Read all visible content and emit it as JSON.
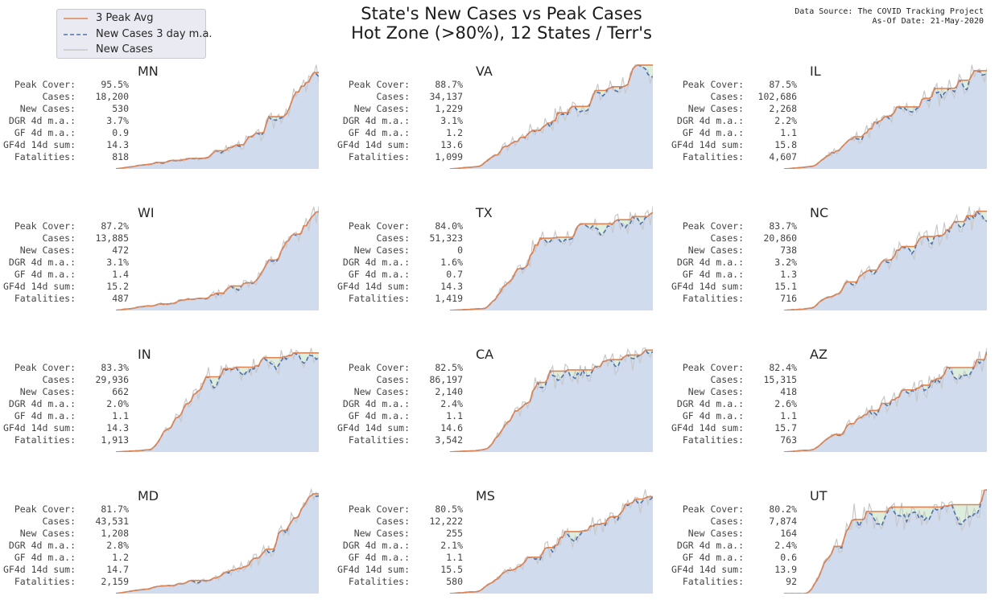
{
  "header": {
    "title_line1": "State's New Cases vs Peak Cases",
    "title_line2": "Hot Zone (>80%), 12 States / Terr's",
    "source_line1": "Data Source: The COVID Tracking Project",
    "source_line2": "As-Of Date: 21-May-2020"
  },
  "legend": {
    "items": [
      {
        "label": "3 Peak Avg",
        "color": "#dd8452",
        "style": "solid"
      },
      {
        "label": "New Cases 3 day m.a.",
        "color": "#4c72b0",
        "style": "dashed"
      },
      {
        "label": "New Cases",
        "color": "#c8c8c8",
        "style": "solid"
      }
    ]
  },
  "stat_labels": [
    "Peak Cover:",
    "Cases:",
    "New Cases:",
    "DGR 4d m.a.:",
    "GF 4d m.a.:",
    "GF4d 14d sum:",
    "Fatalities:"
  ],
  "colors": {
    "peak": "#dd8452",
    "ma": "#4c72b0",
    "raw": "#c8c8c8",
    "area": "#d0dbee",
    "gap": "#deeedd"
  },
  "chart_data": {
    "type": "line",
    "description_series": [
      "3 Peak Avg",
      "New Cases 3 day m.a.",
      "New Cases"
    ],
    "panels": [
      {
        "state": "MN",
        "stats": {
          "peak_cover": "95.5%",
          "cases": "18,200",
          "new_cases": "530",
          "dgr": "3.7%",
          "gf": "0.9",
          "gf14": "14.3",
          "fatalities": "818"
        },
        "shape": "late",
        "seed": 3
      },
      {
        "state": "VA",
        "stats": {
          "peak_cover": "88.7%",
          "cases": "34,137",
          "new_cases": "1,229",
          "dgr": "3.1%",
          "gf": "1.2",
          "gf14": "13.6",
          "fatalities": "1,099"
        },
        "shape": "steady",
        "seed": 7
      },
      {
        "state": "IL",
        "stats": {
          "peak_cover": "87.5%",
          "cases": "102,686",
          "new_cases": "2,268",
          "dgr": "2.2%",
          "gf": "1.1",
          "gf14": "15.8",
          "fatalities": "4,607"
        },
        "shape": "steady",
        "seed": 11
      },
      {
        "state": "WI",
        "stats": {
          "peak_cover": "87.2%",
          "cases": "13,885",
          "new_cases": "472",
          "dgr": "3.1%",
          "gf": "1.4",
          "gf14": "15.2",
          "fatalities": "487"
        },
        "shape": "late",
        "seed": 13
      },
      {
        "state": "TX",
        "stats": {
          "peak_cover": "84.0%",
          "cases": "51,323",
          "new_cases": "0",
          "dgr": "1.6%",
          "gf": "0.7",
          "gf14": "14.3",
          "fatalities": "1,419"
        },
        "shape": "mid",
        "seed": 17
      },
      {
        "state": "NC",
        "stats": {
          "peak_cover": "83.7%",
          "cases": "20,860",
          "new_cases": "738",
          "dgr": "3.2%",
          "gf": "1.3",
          "gf14": "15.1",
          "fatalities": "716"
        },
        "shape": "steady",
        "seed": 19
      },
      {
        "state": "IN",
        "stats": {
          "peak_cover": "83.3%",
          "cases": "29,936",
          "new_cases": "662",
          "dgr": "2.0%",
          "gf": "1.1",
          "gf14": "14.3",
          "fatalities": "1,913"
        },
        "shape": "mid",
        "seed": 23
      },
      {
        "state": "CA",
        "stats": {
          "peak_cover": "82.5%",
          "cases": "86,197",
          "new_cases": "2,140",
          "dgr": "2.4%",
          "gf": "1.1",
          "gf14": "14.6",
          "fatalities": "3,542"
        },
        "shape": "mid",
        "seed": 29
      },
      {
        "state": "AZ",
        "stats": {
          "peak_cover": "82.4%",
          "cases": "15,315",
          "new_cases": "418",
          "dgr": "2.6%",
          "gf": "1.1",
          "gf14": "15.7",
          "fatalities": "763"
        },
        "shape": "steady",
        "seed": 31
      },
      {
        "state": "MD",
        "stats": {
          "peak_cover": "81.7%",
          "cases": "43,531",
          "new_cases": "1,208",
          "dgr": "2.8%",
          "gf": "1.2",
          "gf14": "14.7",
          "fatalities": "2,159"
        },
        "shape": "late",
        "seed": 37
      },
      {
        "state": "MS",
        "stats": {
          "peak_cover": "80.5%",
          "cases": "12,222",
          "new_cases": "255",
          "dgr": "2.1%",
          "gf": "1.1",
          "gf14": "15.5",
          "fatalities": "580"
        },
        "shape": "steady",
        "seed": 41
      },
      {
        "state": "UT",
        "stats": {
          "peak_cover": "80.2%",
          "cases": "7,874",
          "new_cases": "164",
          "dgr": "2.4%",
          "gf": "0.6",
          "gf14": "13.9",
          "fatalities": "92"
        },
        "shape": "plateau",
        "seed": 43
      }
    ]
  }
}
